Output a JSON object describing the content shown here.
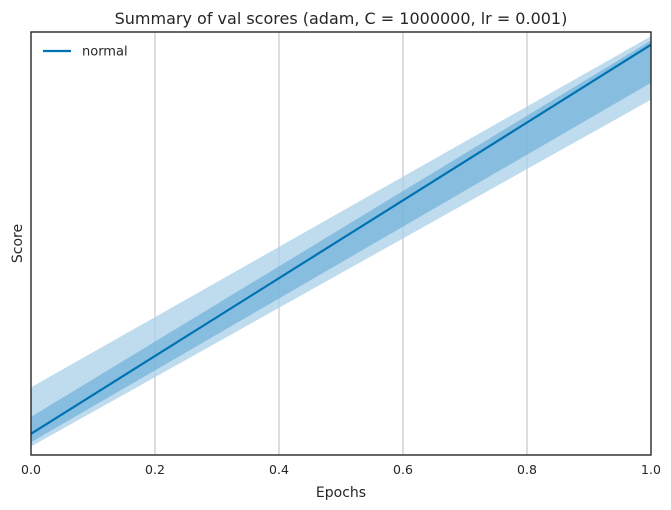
{
  "chart_data": {
    "type": "line",
    "title": "Summary of val scores (adam, C = 1000000, lr = 0.001)",
    "xlabel": "Epochs",
    "ylabel": "Score",
    "xlim": [
      0.0,
      1.0
    ],
    "ylim": [
      0.0,
      1.0
    ],
    "x_ticks": [
      "0.0",
      "0.2",
      "0.4",
      "0.6",
      "0.8",
      "1.0"
    ],
    "x_tick_values": [
      0.0,
      0.2,
      0.4,
      0.6,
      0.8,
      1.0
    ],
    "y_ticks_visible": false,
    "grid": "vertical",
    "legend_position": "top-left",
    "colors": {
      "line": "#0072b2",
      "inner_band": "#5aa6d6",
      "outer_band": "#a9cfe8",
      "grid": "#cccccc",
      "frame": "#262626"
    },
    "series": [
      {
        "name": "normal",
        "x": [
          0.0,
          1.0
        ],
        "mean": [
          0.05,
          0.97
        ],
        "inner_band": {
          "lower": [
            0.03,
            0.88
          ],
          "upper": [
            0.09,
            0.98
          ]
        },
        "outer_band": {
          "lower": [
            0.02,
            0.84
          ],
          "upper": [
            0.16,
            0.99
          ]
        }
      }
    ]
  }
}
